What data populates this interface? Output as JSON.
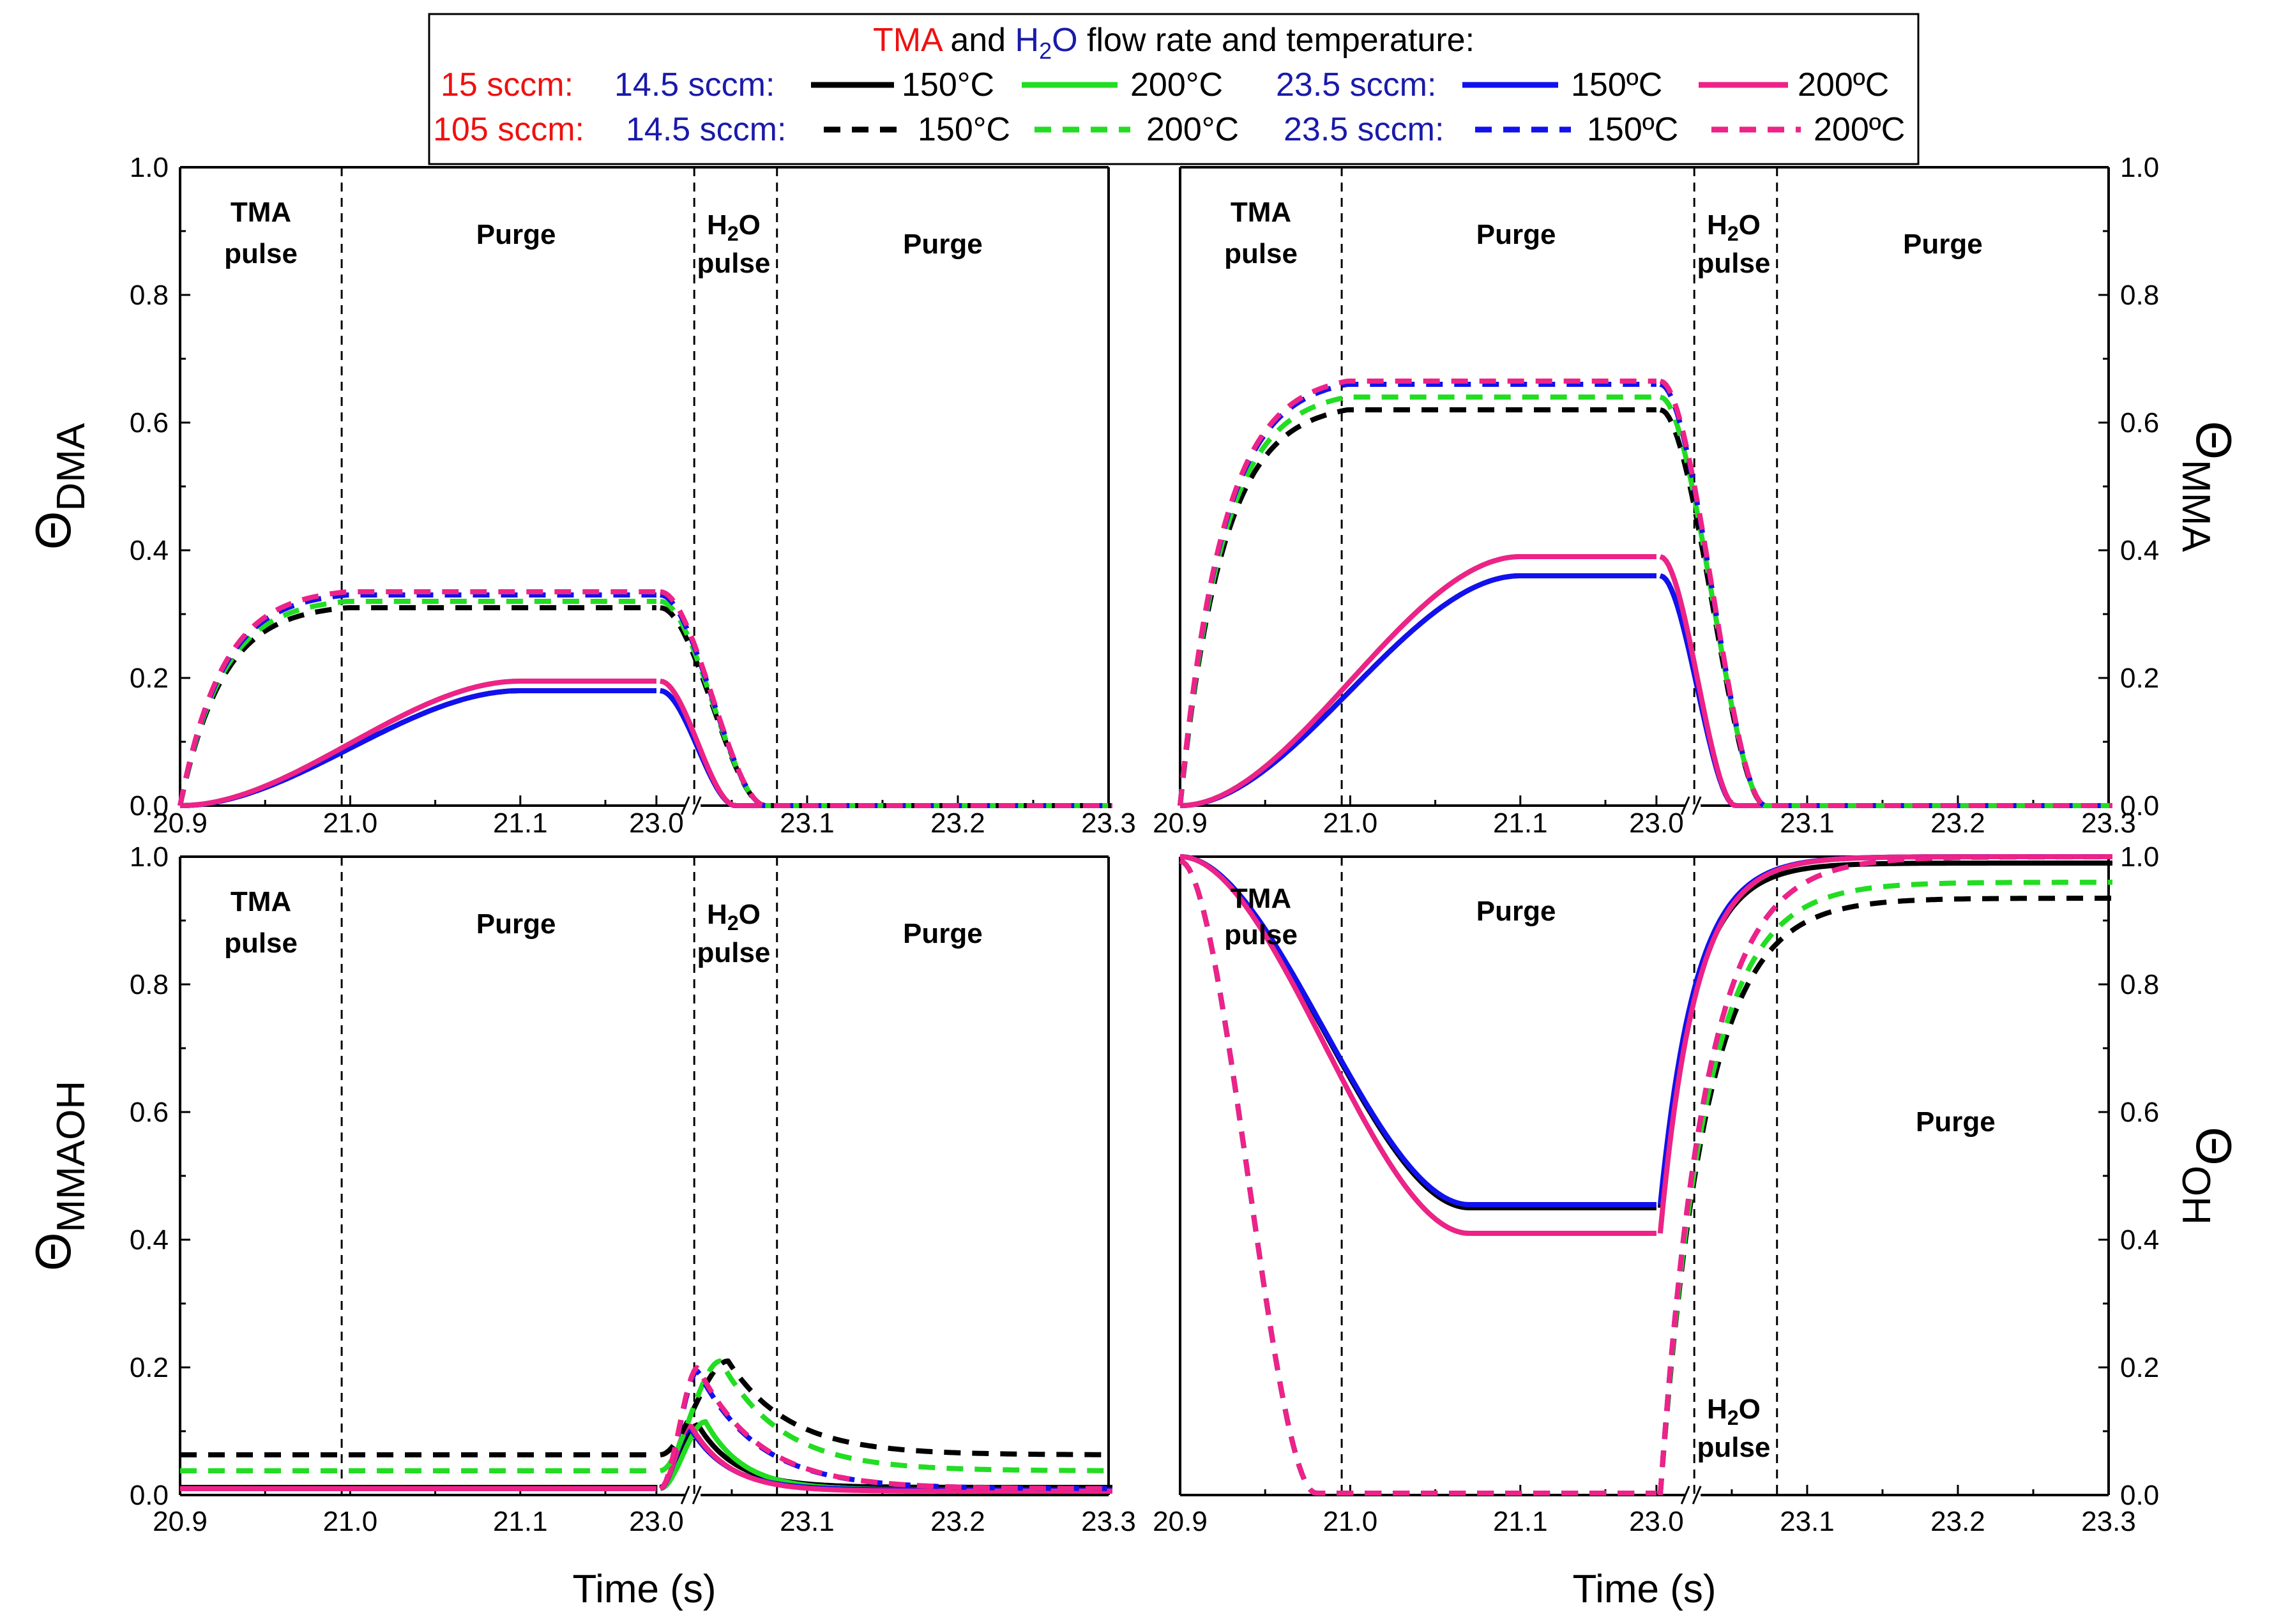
{
  "legend": {
    "title_parts": [
      "TMA",
      " and ",
      "H",
      "2",
      "O",
      " flow rate and temperature:"
    ],
    "rows": [
      {
        "tma": "15 sccm:",
        "h2o_a": "14.5 sccm:",
        "t1": "150°C",
        "t2": "200°C",
        "h2o_b": "23.5 sccm:",
        "t3": "150ºC",
        "t4": "200ºC"
      },
      {
        "tma": "105 sccm:",
        "h2o_a": "14.5 sccm:",
        "t1": "150°C",
        "t2": "200°C",
        "h2o_b": "23.5 sccm:",
        "t3": "150ºC",
        "t4": "200ºC"
      }
    ]
  },
  "colors": {
    "c150_low": "#000000",
    "c200_low": "#22dd22",
    "c150_high": "#1111ee",
    "c200_high": "#ee2288",
    "tma": "#ee1111",
    "h2o": "#1a1aaa"
  },
  "x_ticks": [
    "20.9",
    "21.0",
    "21.1",
    "23.0",
    "23.1",
    "23.2",
    "23.3"
  ],
  "y_ticks": [
    "0.0",
    "0.2",
    "0.4",
    "0.6",
    "0.8",
    "1.0"
  ],
  "phase_labels": {
    "tma": [
      "TMA",
      "pulse"
    ],
    "purge": "Purge",
    "h2o": [
      "H",
      "2",
      "O",
      "pulse"
    ]
  },
  "xlabel": "Time (s)",
  "ylabels": {
    "dma": {
      "sym": "Θ",
      "sub": "DMA"
    },
    "mma": {
      "sym": "Θ",
      "sub": "MMA"
    },
    "mmaoh": {
      "sym": "Θ",
      "sub": "MMAOH"
    },
    "oh": {
      "sym": "Θ",
      "sub": "OH"
    }
  },
  "chart_data": [
    {
      "id": "dma",
      "type": "line",
      "ylabel": "ΘDMA",
      "xlabel": "",
      "ylim": [
        0,
        1.0
      ],
      "x_segments": [
        [
          20.9,
          21.18
        ],
        [
          23.0,
          23.3
        ]
      ],
      "series": [
        {
          "name": "15 sccm, 14.5 sccm, 150°C",
          "style": "solid",
          "color": "c150_low",
          "plateau": 0.18,
          "post": 0.0
        },
        {
          "name": "15 sccm, 14.5 sccm, 200°C",
          "style": "solid",
          "color": "c200_low",
          "plateau": 0.195,
          "post": 0.0
        },
        {
          "name": "15 sccm, 23.5 sccm, 150ºC",
          "style": "solid",
          "color": "c150_high",
          "plateau": 0.18,
          "post": 0.0
        },
        {
          "name": "15 sccm, 23.5 sccm, 200ºC",
          "style": "solid",
          "color": "c200_high",
          "plateau": 0.195,
          "post": 0.0
        },
        {
          "name": "105 sccm, 14.5 sccm, 150°C",
          "style": "dashed",
          "color": "c150_low",
          "plateau": 0.31,
          "post": 0.0
        },
        {
          "name": "105 sccm, 14.5 sccm, 200°C",
          "style": "dashed",
          "color": "c200_low",
          "plateau": 0.32,
          "post": 0.0
        },
        {
          "name": "105 sccm, 23.5 sccm, 150ºC",
          "style": "dashed",
          "color": "c150_high",
          "plateau": 0.33,
          "post": 0.0
        },
        {
          "name": "105 sccm, 23.5 sccm, 200ºC",
          "style": "dashed",
          "color": "c200_high",
          "plateau": 0.335,
          "post": 0.0
        }
      ]
    },
    {
      "id": "mma",
      "type": "line",
      "ylabel": "ΘMMA",
      "xlabel": "",
      "ylim": [
        0,
        1.0
      ],
      "x_segments": [
        [
          20.9,
          21.18
        ],
        [
          23.0,
          23.3
        ]
      ],
      "series": [
        {
          "name": "15 sccm, 14.5 sccm, 150°C",
          "style": "solid",
          "color": "c150_low",
          "plateau": 0.36,
          "post": 0.0
        },
        {
          "name": "15 sccm, 14.5 sccm, 200°C",
          "style": "solid",
          "color": "c200_low",
          "plateau": 0.39,
          "post": 0.0
        },
        {
          "name": "15 sccm, 23.5 sccm, 150ºC",
          "style": "solid",
          "color": "c150_high",
          "plateau": 0.36,
          "post": 0.0
        },
        {
          "name": "15 sccm, 23.5 sccm, 200ºC",
          "style": "solid",
          "color": "c200_high",
          "plateau": 0.39,
          "post": 0.0
        },
        {
          "name": "105 sccm, 14.5 sccm, 150°C",
          "style": "dashed",
          "color": "c150_low",
          "plateau": 0.62,
          "post": 0.0
        },
        {
          "name": "105 sccm, 14.5 sccm, 200°C",
          "style": "dashed",
          "color": "c200_low",
          "plateau": 0.64,
          "post": 0.0
        },
        {
          "name": "105 sccm, 23.5 sccm, 150ºC",
          "style": "dashed",
          "color": "c150_high",
          "plateau": 0.66,
          "post": 0.0
        },
        {
          "name": "105 sccm, 23.5 sccm, 200ºC",
          "style": "dashed",
          "color": "c200_high",
          "plateau": 0.665,
          "post": 0.0
        }
      ]
    },
    {
      "id": "mmaoh",
      "type": "line",
      "ylabel": "ΘMMAOH",
      "xlabel": "Time (s)",
      "ylim": [
        0,
        1.0
      ],
      "x_segments": [
        [
          20.9,
          21.18
        ],
        [
          23.0,
          23.3
        ]
      ],
      "series": [
        {
          "name": "15 sccm, 14.5 sccm, 150°C",
          "style": "solid",
          "color": "c150_low",
          "base": 0.012,
          "peak": 0.11,
          "peak_t": 23.025,
          "post": 0.012
        },
        {
          "name": "15 sccm, 14.5 sccm, 200°C",
          "style": "solid",
          "color": "c200_low",
          "base": 0.01,
          "peak": 0.115,
          "peak_t": 23.03,
          "post": 0.008
        },
        {
          "name": "15 sccm, 23.5 sccm, 150ºC",
          "style": "solid",
          "color": "c150_high",
          "base": 0.01,
          "peak": 0.105,
          "peak_t": 23.02,
          "post": 0.008
        },
        {
          "name": "15 sccm, 23.5 sccm, 200ºC",
          "style": "solid",
          "color": "c200_high",
          "base": 0.01,
          "peak": 0.11,
          "peak_t": 23.02,
          "post": 0.006
        },
        {
          "name": "105 sccm, 14.5 sccm, 150°C",
          "style": "dashed",
          "color": "c150_low",
          "base": 0.063,
          "peak": 0.21,
          "peak_t": 23.045,
          "post": 0.063
        },
        {
          "name": "105 sccm, 14.5 sccm, 200°C",
          "style": "dashed",
          "color": "c200_low",
          "base": 0.038,
          "peak": 0.21,
          "peak_t": 23.04,
          "post": 0.038
        },
        {
          "name": "105 sccm, 23.5 sccm, 150ºC",
          "style": "dashed",
          "color": "c150_high",
          "base": 0.01,
          "peak": 0.195,
          "peak_t": 23.025,
          "post": 0.01
        },
        {
          "name": "105 sccm, 23.5 sccm, 200ºC",
          "style": "dashed",
          "color": "c200_high",
          "base": 0.01,
          "peak": 0.2,
          "peak_t": 23.025,
          "post": 0.01
        }
      ]
    },
    {
      "id": "oh",
      "type": "line",
      "ylabel": "ΘOH",
      "xlabel": "Time (s)",
      "ylim": [
        0,
        1.0
      ],
      "x_segments": [
        [
          20.9,
          21.18
        ],
        [
          23.0,
          23.3
        ]
      ],
      "series": [
        {
          "name": "15 sccm, 14.5 sccm, 150°C",
          "style": "solid",
          "color": "c150_low",
          "plateau": 0.45,
          "final": 0.99
        },
        {
          "name": "15 sccm, 14.5 sccm, 200°C",
          "style": "solid",
          "color": "c200_low",
          "plateau": 0.41,
          "final": 1.0
        },
        {
          "name": "15 sccm, 23.5 sccm, 150ºC",
          "style": "solid",
          "color": "c150_high",
          "plateau": 0.455,
          "final": 1.0
        },
        {
          "name": "15 sccm, 23.5 sccm, 200ºC",
          "style": "solid",
          "color": "c200_high",
          "plateau": 0.41,
          "final": 1.0
        },
        {
          "name": "105 sccm, 14.5 sccm, 150°C",
          "style": "dashed",
          "color": "c150_low",
          "plateau": 0.0,
          "final": 0.935
        },
        {
          "name": "105 sccm, 14.5 sccm, 200°C",
          "style": "dashed",
          "color": "c200_low",
          "plateau": 0.0,
          "final": 0.96
        },
        {
          "name": "105 sccm, 23.5 sccm, 150ºC",
          "style": "dashed",
          "color": "c150_high",
          "plateau": 0.0,
          "final": 1.0
        },
        {
          "name": "105 sccm, 23.5 sccm, 200ºC",
          "style": "dashed",
          "color": "c200_high",
          "plateau": 0.0,
          "final": 1.0
        }
      ]
    }
  ]
}
